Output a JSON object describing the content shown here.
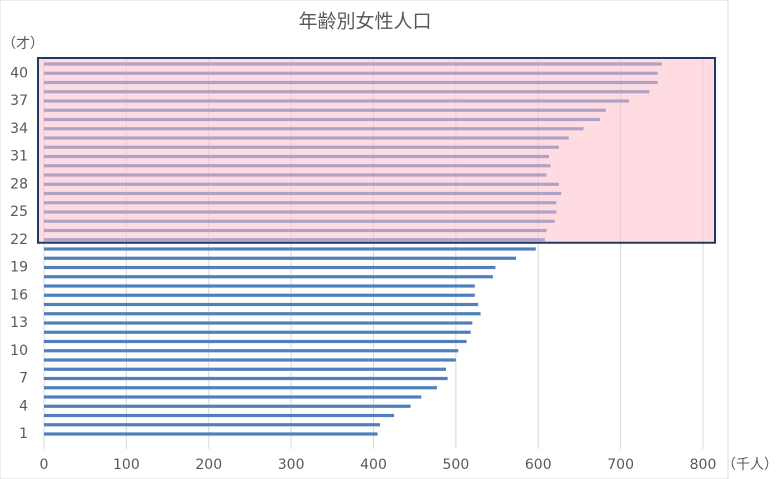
{
  "chart_data": {
    "type": "barh",
    "title": "年齢別女性人口",
    "y_label": "（才）",
    "x_label": "（千人）",
    "categories": [
      "1",
      null,
      null,
      "4",
      null,
      null,
      "7",
      null,
      null,
      "10",
      null,
      null,
      "13",
      null,
      null,
      "16",
      null,
      null,
      "19",
      null,
      null,
      "22",
      null,
      null,
      "25",
      null,
      null,
      "28",
      null,
      null,
      "31",
      null,
      null,
      "34",
      null,
      null,
      "37",
      null,
      null,
      "40",
      null
    ],
    "values": [
      405,
      408,
      425,
      445,
      458,
      477,
      490,
      488,
      500,
      503,
      513,
      518,
      520,
      530,
      527,
      523,
      523,
      545,
      548,
      573,
      597,
      608,
      610,
      620,
      622,
      622,
      628,
      625,
      610,
      615,
      613,
      625,
      637,
      655,
      675,
      682,
      710,
      735,
      745,
      745,
      750
    ],
    "color": "#4f7fbd",
    "xlim": [
      0,
      800
    ],
    "xticks": [
      0,
      100,
      200,
      300,
      400,
      500,
      600,
      700,
      800
    ],
    "grid": true,
    "highlight_from": "22",
    "highlight_color": "#ffc0cb",
    "highlight_border": "#1f3864"
  }
}
